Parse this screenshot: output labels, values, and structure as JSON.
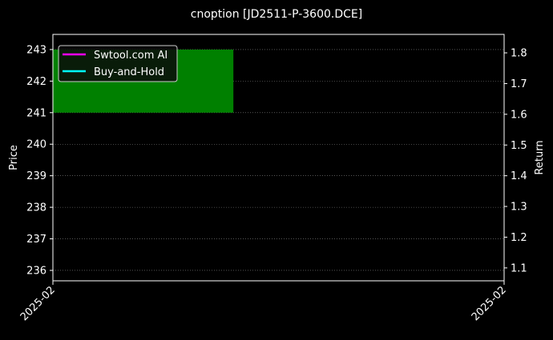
{
  "chart_data": {
    "type": "candlestick",
    "title": "cnoption [JD2511-P-3600.DCE]",
    "xlabel": "",
    "ylabel_left": "Price",
    "ylabel_right": "Return",
    "x_tick_labels": [
      "2025-02",
      "2025-02"
    ],
    "xlim": [
      -0.4,
      1.6
    ],
    "x_ticks": [
      -0.4,
      1.6
    ],
    "ylim_left": [
      235.67,
      243.48
    ],
    "yticks_left": [
      236,
      237,
      238,
      239,
      240,
      241,
      242,
      243
    ],
    "ylim_right": [
      1.058,
      1.86
    ],
    "yticks_right": [
      1.1,
      1.2,
      1.3,
      1.4,
      1.5,
      1.6,
      1.7,
      1.8
    ],
    "candles": [
      {
        "x": 0,
        "open": 241,
        "close": 243,
        "color": "#008000"
      }
    ],
    "grid": true,
    "legend_position": "top-left",
    "series": [
      {
        "name": "Swtool.com AI",
        "color": "#ff00ff",
        "values": []
      },
      {
        "name": "Buy-and-Hold",
        "color": "#00ffff",
        "values": []
      }
    ]
  }
}
